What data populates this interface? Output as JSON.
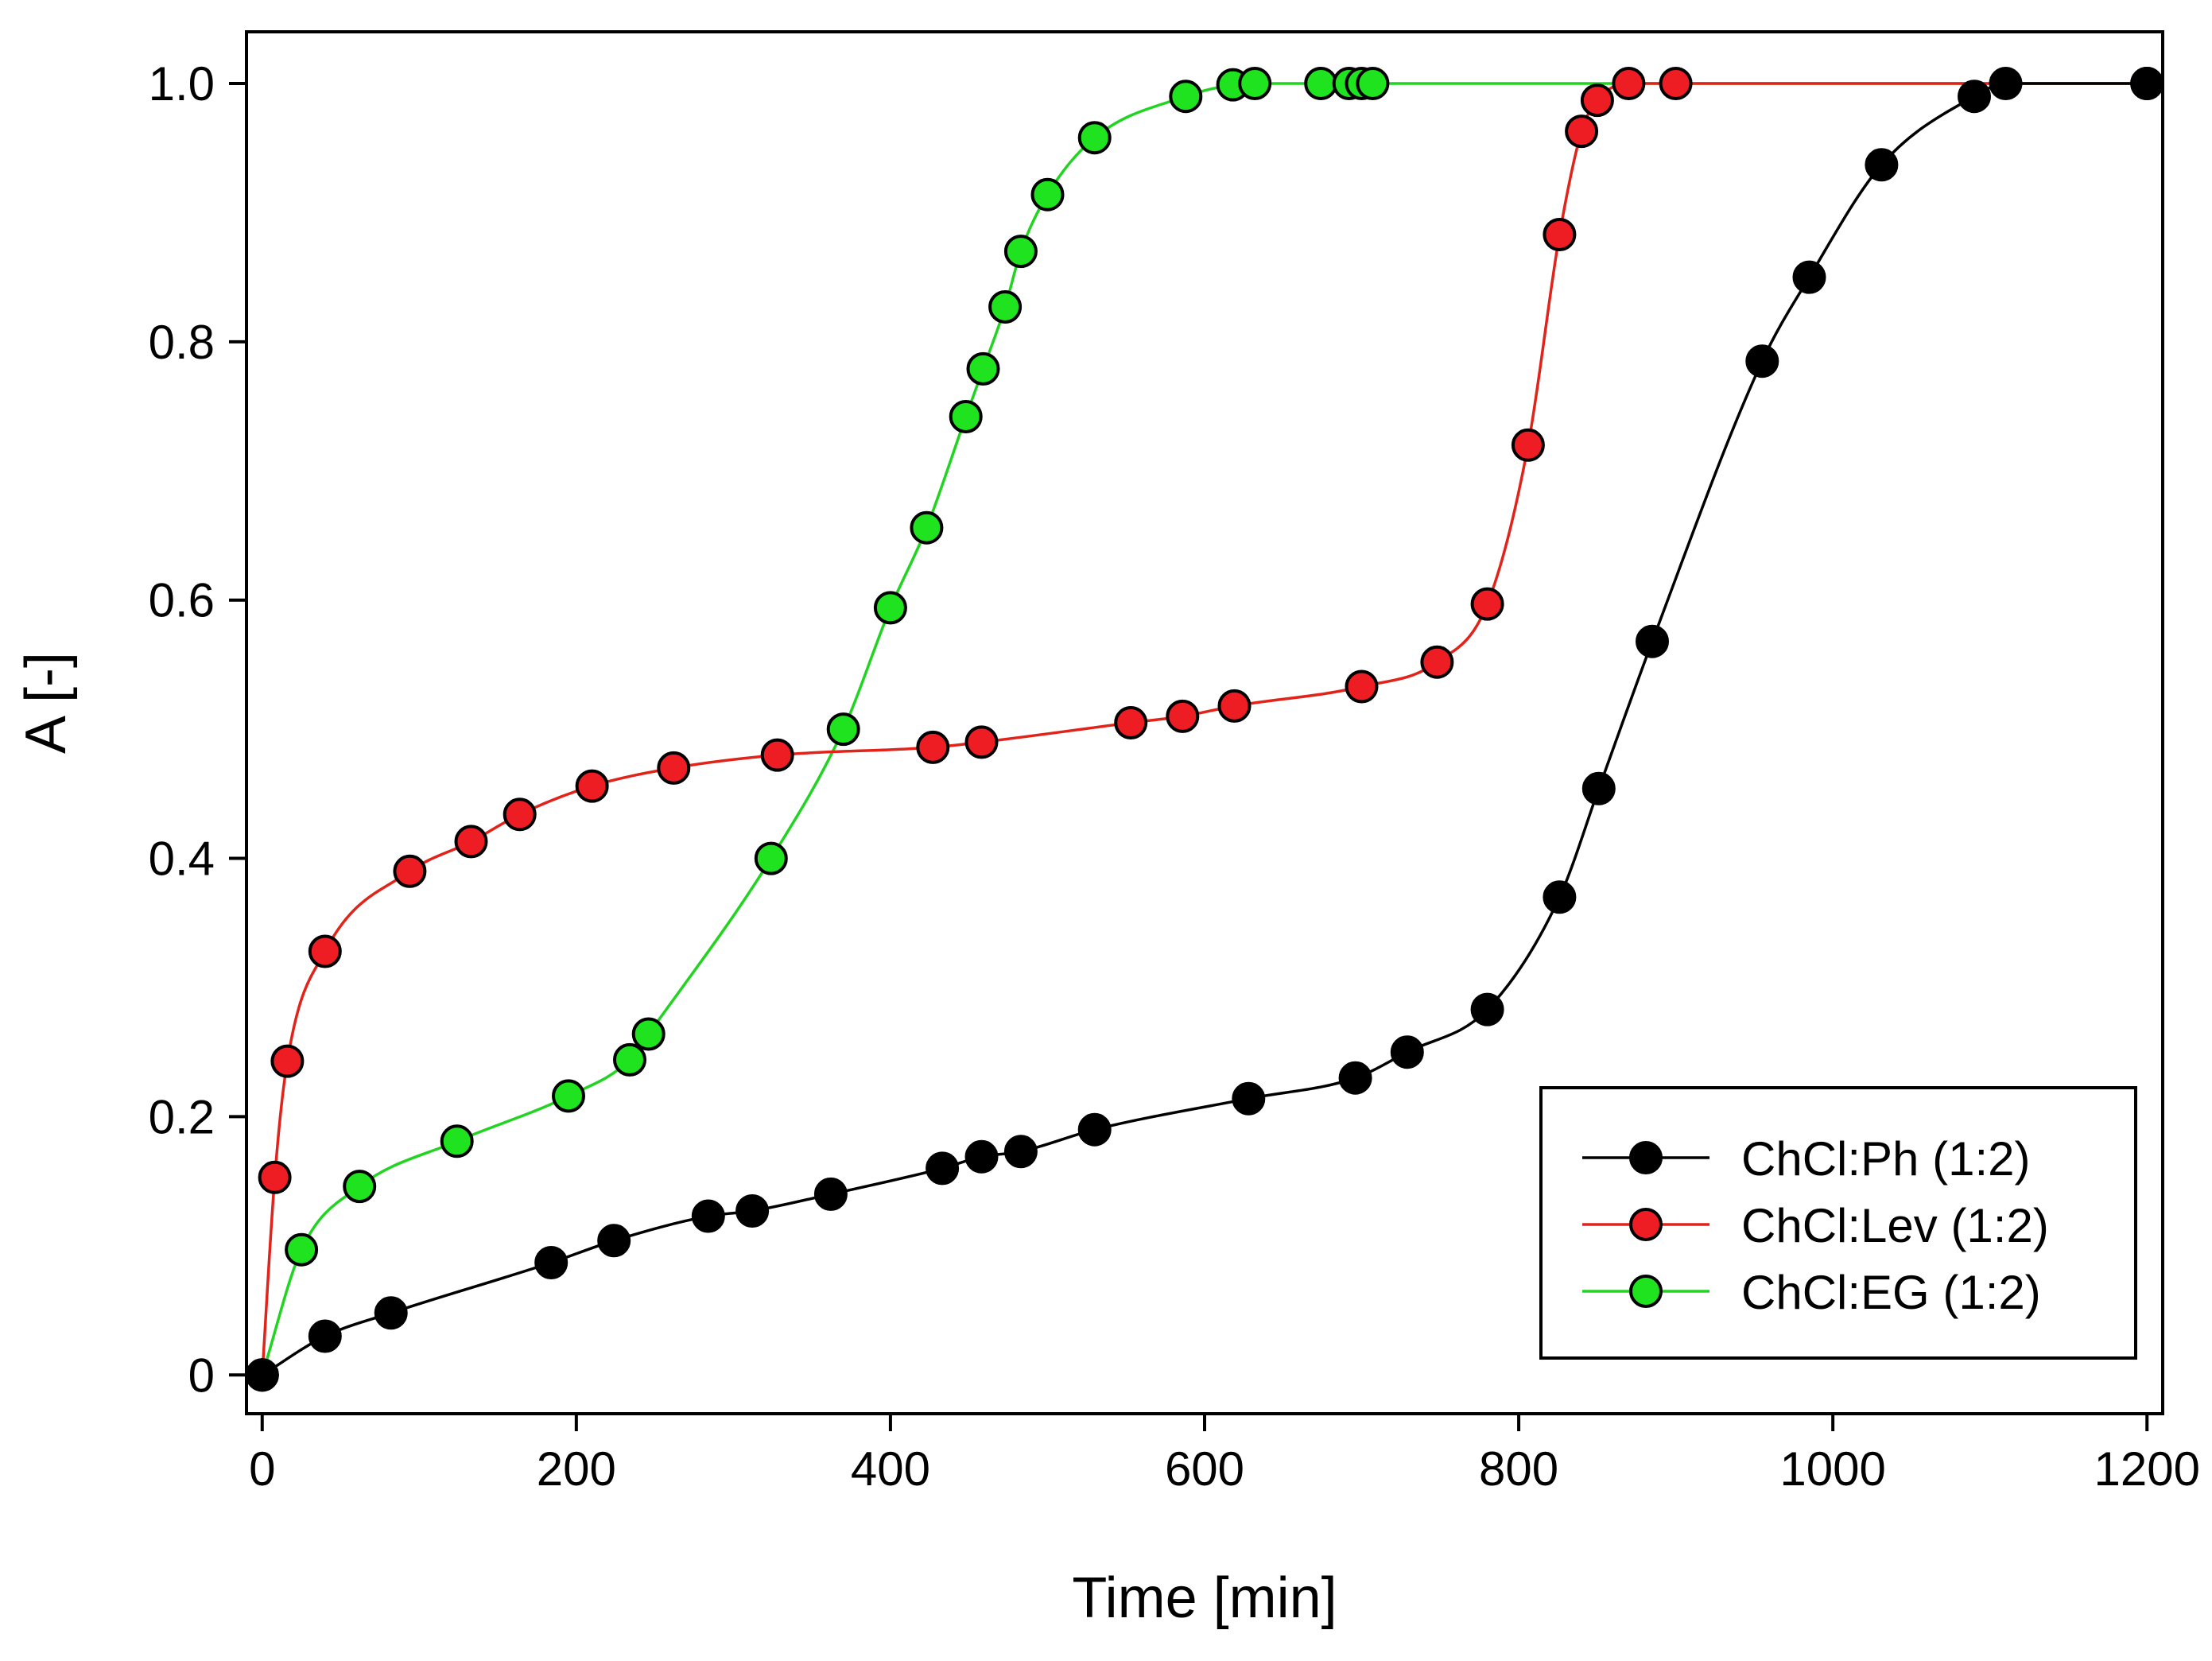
{
  "chart_data": {
    "type": "line",
    "xlabel": "Time [min]",
    "ylabel": "A [-]",
    "xlim": [
      -10,
      1210
    ],
    "ylim": [
      -0.03,
      1.04
    ],
    "xticks": [
      {
        "value": 0,
        "label": "0"
      },
      {
        "value": 200,
        "label": "200"
      },
      {
        "value": 400,
        "label": "400"
      },
      {
        "value": 600,
        "label": "600"
      },
      {
        "value": 800,
        "label": "800"
      },
      {
        "value": 1000,
        "label": "1000"
      },
      {
        "value": 1200,
        "label": "1200"
      }
    ],
    "yticks": [
      {
        "value": 0,
        "label": "0"
      },
      {
        "value": 0.2,
        "label": "0.2"
      },
      {
        "value": 0.4,
        "label": "0.4"
      },
      {
        "value": 0.6,
        "label": "0.6"
      },
      {
        "value": 0.8,
        "label": "0.8"
      },
      {
        "value": 1.0,
        "label": "1.0"
      }
    ],
    "grid": false,
    "legend_position": "bottom-right",
    "series": [
      {
        "name": "ChCl:Ph (1:2)",
        "color": "#000000",
        "marker_fill": "#000000",
        "x": [
          0,
          40,
          82,
          184,
          224,
          284,
          312,
          362,
          433,
          458,
          483,
          530,
          628,
          696,
          729,
          780,
          826,
          851,
          885,
          955,
          985,
          1031,
          1090,
          1110,
          1200
        ],
        "y": [
          0,
          0.03,
          0.048,
          0.087,
          0.104,
          0.123,
          0.127,
          0.14,
          0.16,
          0.169,
          0.173,
          0.19,
          0.214,
          0.23,
          0.25,
          0.283,
          0.37,
          0.454,
          0.568,
          0.785,
          0.85,
          0.937,
          0.99,
          1.0,
          1.0
        ]
      },
      {
        "name": "ChCl:Lev (1:2)",
        "color": "#e2231a",
        "marker_fill": "#ee1d23",
        "x": [
          0,
          8,
          16,
          40,
          94,
          133,
          164,
          210,
          262,
          328,
          427,
          458,
          553,
          586,
          619,
          700,
          748,
          780,
          806,
          826,
          840,
          850,
          870,
          900,
          1200
        ],
        "y": [
          0,
          0.153,
          0.243,
          0.328,
          0.39,
          0.413,
          0.434,
          0.456,
          0.47,
          0.48,
          0.486,
          0.49,
          0.505,
          0.51,
          0.518,
          0.533,
          0.552,
          0.597,
          0.72,
          0.883,
          0.963,
          0.987,
          1.0,
          1.0,
          1.0
        ]
      },
      {
        "name": "ChCl:EG (1:2)",
        "color": "#22d422",
        "marker_fill": "#1fe31f",
        "x": [
          0,
          25,
          62,
          124,
          195,
          234,
          246,
          324,
          370,
          400,
          423,
          448,
          459,
          473,
          483,
          500,
          530,
          588,
          618,
          632,
          674,
          692,
          700,
          707,
          1200
        ],
        "y": [
          0,
          0.097,
          0.146,
          0.181,
          0.216,
          0.244,
          0.264,
          0.4,
          0.5,
          0.594,
          0.656,
          0.742,
          0.779,
          0.827,
          0.87,
          0.914,
          0.958,
          0.99,
          0.999,
          1.0,
          1.0,
          1.0,
          1.0,
          1.0,
          1.0
        ]
      }
    ]
  }
}
